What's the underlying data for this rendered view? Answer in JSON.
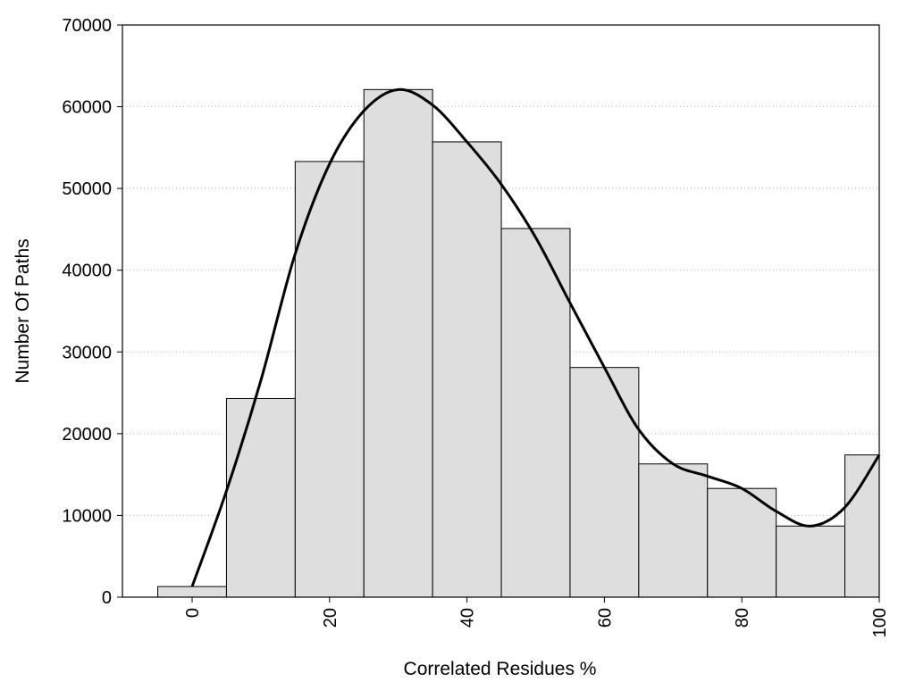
{
  "chart_data": {
    "type": "bar",
    "title": "",
    "xlabel": "Correlated Residues %",
    "ylabel": "Number Of Paths",
    "x_ticks": [
      0,
      20,
      40,
      60,
      80,
      100
    ],
    "x_tick_labels": [
      "0",
      "20",
      "40",
      "60",
      "80",
      "100"
    ],
    "y_ticks": [
      0,
      10000,
      20000,
      30000,
      40000,
      50000,
      60000,
      70000
    ],
    "y_tick_labels": [
      "0",
      "10000",
      "20000",
      "30000",
      "40000",
      "50000",
      "60000",
      "70000"
    ],
    "xlim": [
      -10,
      100
    ],
    "ylim": [
      0,
      70000
    ],
    "grid": "horizontal dotted",
    "legend": "none",
    "bar_width": 10,
    "bars": [
      {
        "x": 0,
        "value": 1300
      },
      {
        "x": 10,
        "value": 24300
      },
      {
        "x": 20,
        "value": 53300
      },
      {
        "x": 30,
        "value": 62100
      },
      {
        "x": 40,
        "value": 55700
      },
      {
        "x": 50,
        "value": 45100
      },
      {
        "x": 60,
        "value": 28100
      },
      {
        "x": 70,
        "value": 16300
      },
      {
        "x": 80,
        "value": 13300
      },
      {
        "x": 90,
        "value": 8700
      },
      {
        "x": 100,
        "value": 17400
      }
    ],
    "curve": {
      "x": [
        0,
        5,
        10,
        15,
        20,
        25,
        30,
        35,
        40,
        45,
        50,
        55,
        60,
        65,
        70,
        75,
        80,
        85,
        90,
        95,
        100
      ],
      "y": [
        1300,
        13000,
        26500,
        42000,
        53000,
        59500,
        62100,
        60200,
        55700,
        50500,
        44000,
        36000,
        28100,
        20500,
        16300,
        14800,
        13300,
        10500,
        8700,
        11000,
        17400
      ]
    },
    "colors": {
      "bar_fill": "#dedede",
      "bar_stroke": "#000000",
      "curve": "#000000",
      "grid": "#bbbbbb"
    }
  }
}
